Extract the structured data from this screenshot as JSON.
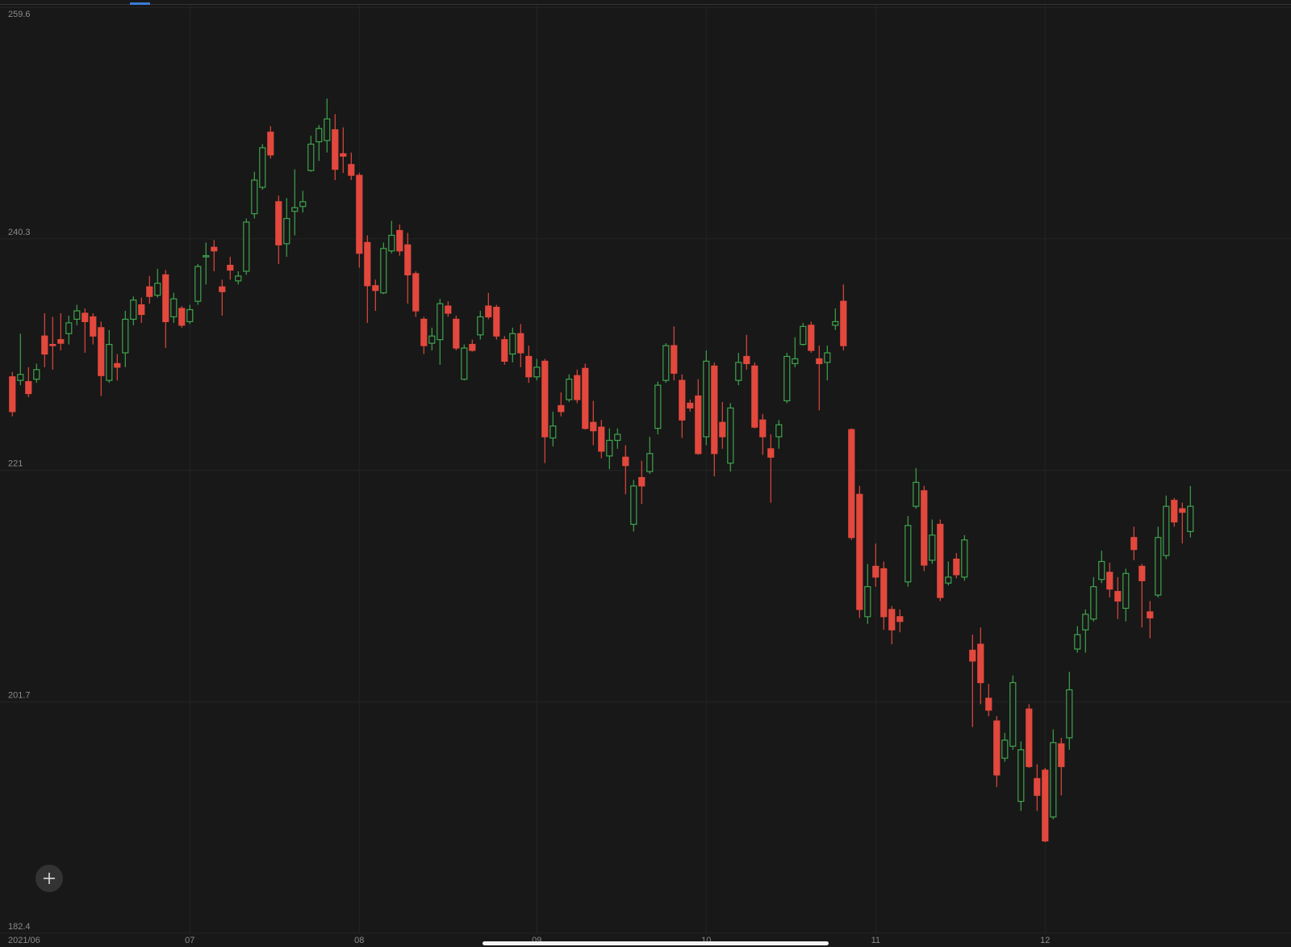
{
  "chart_data": {
    "type": "candlestick",
    "ylim": [
      182.4,
      259.6
    ],
    "yticks": [
      182.4,
      201.7,
      221.0,
      240.3,
      259.6
    ],
    "grid": true,
    "up_color": "#3fa34d",
    "down_color": "#e2483d",
    "categories": [
      "2021/06",
      null,
      null,
      null,
      null,
      null,
      null,
      null,
      null,
      null,
      null,
      null,
      null,
      null,
      null,
      null,
      null,
      null,
      null,
      null,
      null,
      null,
      "07",
      null,
      null,
      null,
      null,
      null,
      null,
      null,
      null,
      null,
      null,
      null,
      null,
      null,
      null,
      null,
      null,
      null,
      null,
      null,
      null,
      "08",
      null,
      null,
      null,
      null,
      null,
      null,
      null,
      null,
      null,
      null,
      null,
      null,
      null,
      null,
      null,
      null,
      null,
      null,
      null,
      null,
      null,
      "09",
      null,
      null,
      null,
      null,
      null,
      null,
      null,
      null,
      null,
      null,
      null,
      null,
      null,
      null,
      null,
      null,
      null,
      null,
      null,
      null,
      "10",
      null,
      null,
      null,
      null,
      null,
      null,
      null,
      null,
      null,
      null,
      null,
      null,
      null,
      null,
      null,
      null,
      null,
      null,
      null,
      null,
      "11",
      null,
      null,
      null,
      null,
      null,
      null,
      null,
      null,
      null,
      null,
      null,
      null,
      null,
      null,
      null,
      null,
      null,
      null,
      null,
      null,
      "12",
      null,
      null,
      null,
      null,
      null,
      null,
      null,
      null,
      null,
      null,
      null,
      null,
      null,
      null,
      null,
      null,
      null,
      null
    ],
    "open": [
      228.8,
      228.5,
      228.4,
      228.6,
      232.2,
      231.5,
      231.9,
      232.4,
      233.6,
      234.1,
      233.8,
      232.9,
      228.5,
      229.9,
      230.8,
      233.6,
      234.8,
      236.3,
      235.6,
      237.3,
      233.8,
      234.5,
      233.4,
      235.1,
      238.8,
      239.6,
      236.3,
      238.1,
      236.8,
      237.6,
      242.4,
      244.6,
      249.2,
      243.4,
      239.9,
      242.6,
      243.0,
      246.0,
      248.4,
      248.5,
      249.4,
      247.4,
      246.5,
      245.6,
      240.0,
      236.4,
      235.8,
      239.3,
      241.0,
      239.8,
      237.4,
      233.6,
      231.6,
      231.9,
      234.7,
      233.6,
      228.6,
      231.5,
      232.3,
      234.7,
      234.6,
      231.9,
      230.7,
      232.4,
      230.5,
      228.8,
      230.1,
      223.7,
      226.4,
      226.9,
      228.9,
      229.5,
      225.0,
      224.6,
      222.2,
      223.5,
      222.1,
      216.5,
      220.4,
      220.9,
      224.5,
      228.5,
      231.4,
      228.5,
      226.6,
      227.2,
      223.8,
      229.7,
      225.0,
      221.6,
      228.5,
      230.5,
      229.7,
      225.2,
      222.8,
      223.8,
      226.8,
      229.9,
      231.5,
      233.1,
      230.3,
      230.0,
      233.1,
      235.1,
      224.4,
      219.0,
      208.8,
      213.0,
      212.8,
      209.4,
      208.8,
      211.7,
      218.0,
      219.3,
      213.5,
      216.5,
      211.6,
      213.6,
      212.1,
      206.0,
      206.5,
      202.0,
      200.1,
      197.0,
      198.0,
      193.4,
      201.1,
      195.3,
      196.0,
      192.1,
      198.2,
      198.7,
      206.1,
      207.7,
      208.6,
      211.9,
      212.5,
      210.9,
      209.5,
      215.4,
      213.0,
      209.2,
      210.6,
      213.9,
      218.5,
      217.8,
      215.9
    ],
    "high": [
      229.2,
      232.4,
      229.6,
      229.9,
      234.1,
      233.8,
      234.1,
      233.9,
      234.8,
      234.5,
      234.1,
      233.4,
      232.7,
      230.7,
      234.3,
      235.5,
      235.4,
      237.2,
      237.8,
      237.7,
      235.8,
      234.7,
      234.8,
      238.2,
      240.0,
      240.2,
      236.9,
      238.8,
      237.6,
      242.0,
      245.9,
      248.2,
      249.7,
      243.9,
      243.7,
      246.1,
      244.3,
      248.9,
      249.8,
      252.0,
      250.7,
      249.6,
      247.5,
      245.8,
      240.6,
      236.9,
      240.0,
      241.8,
      241.5,
      240.8,
      237.6,
      233.8,
      232.9,
      235.3,
      235.1,
      233.9,
      231.5,
      231.9,
      234.3,
      235.8,
      234.8,
      232.2,
      232.9,
      233.2,
      231.4,
      230.3,
      230.3,
      225.9,
      227.5,
      229.0,
      229.4,
      229.9,
      226.8,
      225.2,
      224.5,
      224.5,
      223.1,
      220.2,
      221.8,
      223.8,
      228.4,
      231.6,
      233.0,
      229.0,
      226.9,
      228.6,
      231.0,
      230.0,
      226.7,
      226.6,
      230.8,
      232.3,
      230.0,
      225.7,
      224.0,
      225.2,
      230.8,
      232.1,
      233.3,
      233.4,
      231.4,
      231.4,
      234.5,
      236.5,
      224.5,
      219.7,
      213.2,
      214.9,
      213.4,
      209.7,
      209.4,
      217.2,
      221.2,
      219.7,
      216.9,
      216.9,
      213.4,
      214.1,
      215.6,
      207.3,
      207.9,
      203.2,
      200.5,
      199.1,
      203.9,
      198.4,
      201.5,
      196.5,
      196.2,
      199.4,
      198.7,
      204.2,
      208.0,
      209.4,
      212.1,
      214.3,
      213.3,
      212.1,
      212.8,
      216.3,
      213.2,
      210.1,
      216.3,
      218.9,
      218.7,
      218.3,
      219.7
    ],
    "low": [
      225.5,
      228.1,
      227.1,
      228.3,
      229.6,
      229.4,
      231.0,
      231.5,
      233.1,
      230.8,
      231.5,
      227.2,
      228.3,
      228.5,
      229.6,
      233.1,
      233.3,
      234.9,
      235.4,
      231.2,
      233.3,
      232.9,
      233.2,
      234.8,
      236.5,
      237.6,
      233.9,
      236.9,
      236.5,
      237.3,
      242.0,
      244.4,
      247.0,
      238.2,
      238.8,
      240.6,
      242.5,
      245.9,
      246.8,
      247.5,
      245.2,
      245.8,
      245.2,
      237.9,
      233.3,
      234.3,
      235.7,
      239.1,
      238.9,
      234.9,
      233.8,
      230.7,
      231.0,
      229.8,
      233.8,
      231.0,
      228.5,
      230.9,
      231.9,
      233.6,
      231.9,
      229.8,
      230.0,
      229.6,
      228.3,
      228.5,
      221.6,
      223.0,
      225.5,
      226.7,
      226.6,
      224.4,
      223.1,
      222.0,
      221.1,
      222.8,
      219.0,
      215.9,
      218.2,
      220.7,
      224.0,
      228.3,
      228.5,
      223.7,
      225.9,
      222.3,
      223.1,
      220.5,
      222.8,
      220.9,
      228.1,
      229.4,
      224.5,
      222.3,
      218.3,
      222.8,
      226.6,
      229.6,
      231.4,
      230.8,
      226.0,
      228.5,
      232.7,
      231.0,
      215.2,
      208.7,
      208.2,
      211.3,
      207.7,
      206.5,
      207.5,
      211.3,
      217.8,
      212.6,
      213.2,
      210.1,
      211.4,
      212.0,
      211.8,
      199.6,
      201.5,
      200.5,
      194.6,
      196.7,
      197.7,
      192.6,
      196.2,
      192.6,
      190.0,
      191.9,
      193.9,
      197.7,
      205.8,
      205.8,
      208.4,
      211.6,
      210.4,
      208.6,
      208.4,
      213.5,
      207.9,
      207.0,
      210.4,
      213.6,
      216.3,
      214.9,
      215.4
    ],
    "close": [
      225.9,
      229.0,
      227.4,
      229.4,
      230.7,
      231.4,
      231.6,
      233.3,
      234.3,
      233.4,
      232.2,
      228.9,
      231.5,
      229.6,
      233.6,
      235.2,
      234.0,
      235.5,
      236.6,
      233.4,
      235.3,
      233.1,
      234.4,
      238.0,
      238.9,
      239.3,
      235.9,
      237.7,
      237.2,
      241.7,
      245.2,
      247.9,
      247.3,
      239.8,
      242.0,
      242.9,
      243.4,
      248.2,
      249.5,
      250.3,
      246.1,
      247.2,
      245.6,
      239.1,
      236.4,
      236.0,
      239.5,
      240.6,
      239.3,
      237.3,
      234.3,
      231.4,
      232.2,
      234.9,
      234.1,
      231.2,
      231.2,
      231.0,
      233.8,
      233.8,
      232.2,
      230.1,
      232.4,
      230.8,
      228.8,
      229.6,
      223.8,
      224.7,
      225.9,
      228.6,
      226.9,
      224.5,
      224.3,
      222.6,
      223.5,
      224.0,
      221.4,
      219.7,
      219.7,
      222.4,
      228.1,
      231.4,
      229.1,
      225.2,
      226.2,
      222.4,
      230.1,
      222.4,
      223.8,
      226.2,
      230.0,
      229.9,
      224.6,
      223.8,
      222.1,
      224.8,
      230.5,
      230.3,
      233.0,
      231.0,
      229.9,
      230.8,
      233.4,
      231.4,
      215.4,
      209.4,
      211.3,
      212.1,
      208.8,
      207.7,
      208.4,
      216.4,
      220.0,
      213.1,
      215.6,
      210.4,
      212.1,
      212.3,
      215.2,
      205.1,
      203.3,
      201.0,
      195.6,
      198.5,
      203.3,
      197.7,
      196.3,
      193.9,
      190.1,
      198.3,
      196.3,
      202.7,
      207.3,
      209.0,
      211.3,
      213.4,
      211.1,
      210.1,
      212.4,
      214.4,
      211.8,
      208.7,
      215.4,
      218.0,
      216.7,
      217.5,
      218.0
    ]
  }
}
